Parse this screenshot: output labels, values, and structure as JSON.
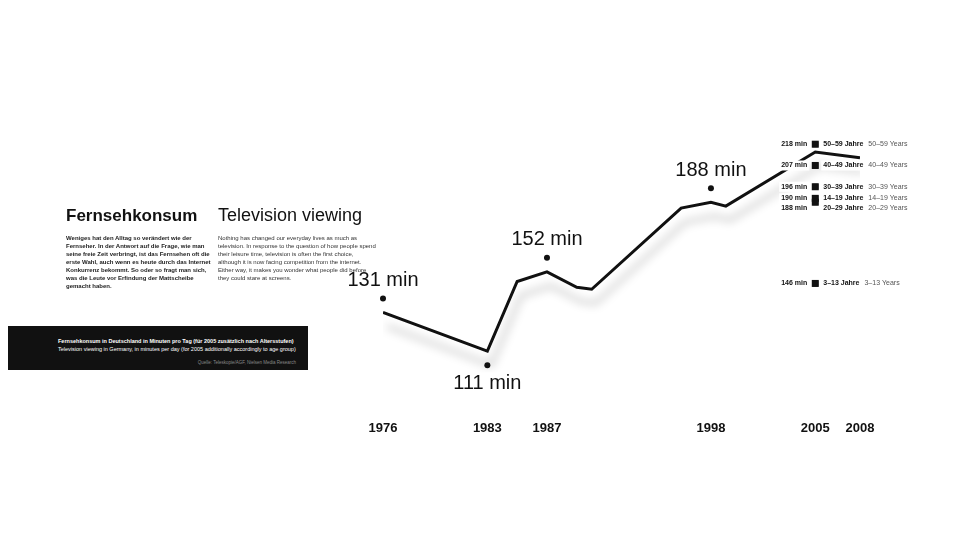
{
  "chart_data": {
    "type": "line",
    "title": "Fernsehkonsum",
    "title_en": "Television viewing",
    "text": "Weniges hat den Alltag so verändert wie der Fernseher. In der Antwort auf die Frage, wie man seine freie Zeit verbringt, ist das Fernsehen oft die erste Wahl, auch wenn es heute durch das Internet Konkurrenz bekommt. So oder so fragt man sich, was die Leute vor Erfindung der Mattscheibe gemacht haben.",
    "text_en": "Nothing has changed our everyday lives as much as television. In response to the question of how people spend their leisure time, television is often the first choice, although it is now facing competition from the internet. Either way, it makes you wonder what people did before they could stare at screens.",
    "subtitle": "Fernsehkonsum in Deutschland in Minuten pro Tag (für 2005 zusätzlich nach Altersstufen)",
    "subtitle_en": "Television viewing in Germany, in minutes per day (for 2005 additionally accordingly to age group)",
    "source": "Quelle: Teleskopie/AGF, Nielsen Media Research",
    "x": [
      1976,
      1983,
      1985,
      1987,
      1989,
      1990,
      1996,
      1998,
      1999,
      2005,
      2008
    ],
    "values": [
      131,
      111,
      147,
      152,
      144,
      143,
      185,
      188,
      186,
      214,
      211
    ],
    "value_labels": [
      "131 min",
      "111 min",
      null,
      "152 min",
      null,
      null,
      null,
      "188 min",
      null,
      null,
      null
    ],
    "data_labels": true,
    "color": "#111111",
    "xlim": [
      1976,
      2008
    ],
    "xticks": [
      1976,
      1983,
      1987,
      1998,
      2005,
      2008
    ],
    "ylim": [
      100,
      230
    ],
    "grid": false,
    "tick_labels": "x",
    "age_groups": {
      "x": 2005,
      "color": "#111111",
      "marker": "square",
      "groups": [
        {
          "name": "50–59 Jahre",
          "name_en": "50–59 Years",
          "value": 218,
          "value_label": "218 min"
        },
        {
          "name": "40–49 Jahre",
          "name_en": "40–49 Years",
          "value": 207,
          "value_label": "207 min"
        },
        {
          "name": "30–39 Jahre",
          "name_en": "30–39 Years",
          "value": 196,
          "value_label": "196 min"
        },
        {
          "name": "14–19 Jahre",
          "name_en": "14–19 Years",
          "value": 190,
          "value_label": "190 min"
        },
        {
          "name": "20–29 Jahre",
          "name_en": "20–29 Years",
          "value": 188,
          "value_label": "188 min"
        },
        {
          "name": "3–13 Jahre",
          "name_en": "3–13 Years",
          "value": 146,
          "value_label": "146 min"
        }
      ]
    }
  }
}
